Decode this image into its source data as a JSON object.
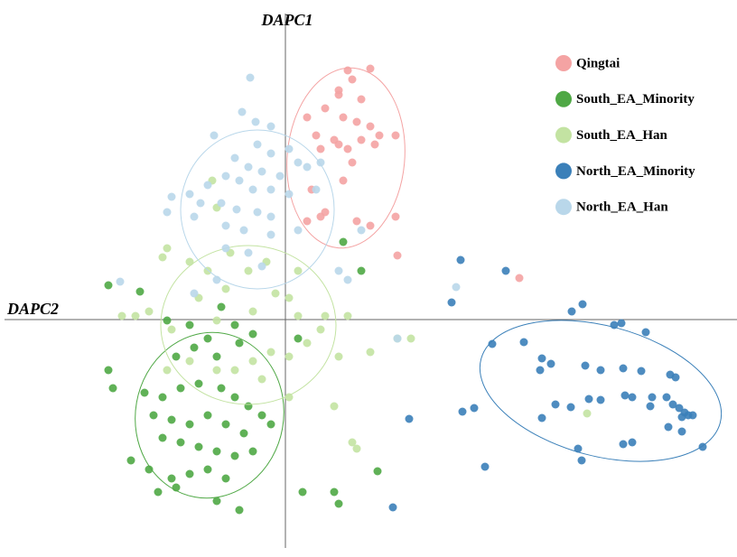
{
  "chart_data": {
    "type": "scatter",
    "x_label": "DAPC2",
    "y_label": "DAPC1",
    "xlim": [
      -311,
      500
    ],
    "ylim": [
      -253,
      339
    ],
    "legend": "top-right",
    "series": [
      {
        "name": "Qingtai",
        "color": "#f4a3a3",
        "x": [
          69,
          94,
          74,
          59,
          84,
          44,
          64,
          79,
          94,
          34,
          54,
          84,
          104,
          122,
          39,
          69,
          99,
          74,
          64,
          29,
          44,
          24,
          39,
          79,
          94,
          122,
          124,
          259,
          24,
          59,
          59
        ],
        "y": [
          276,
          278,
          266,
          254,
          244,
          234,
          224,
          219,
          214,
          204,
          199,
          199,
          204,
          204,
          189,
          189,
          194,
          174,
          154,
          144,
          119,
          109,
          114,
          109,
          104,
          114,
          71,
          46,
          224,
          249,
          194
        ],
        "ellipse": {
          "cx": 67,
          "cy": 179,
          "rx": 65,
          "ry": 100,
          "angle": -5
        }
      },
      {
        "name": "South_EA_Minority",
        "color": "#4fa845",
        "x": [
          -196,
          -161,
          -131,
          -106,
          -71,
          -56,
          -86,
          -101,
          -121,
          -76,
          -51,
          -36,
          -196,
          -191,
          -156,
          -136,
          -116,
          -96,
          -71,
          -56,
          -41,
          -26,
          -16,
          -146,
          -126,
          -106,
          -86,
          -66,
          -46,
          -136,
          -116,
          -96,
          -76,
          -56,
          -36,
          -171,
          -151,
          -126,
          -106,
          -86,
          -66,
          -141,
          -121,
          -76,
          -51,
          19,
          54,
          59,
          102,
          14,
          64,
          84
        ],
        "y": [
          38,
          31,
          -1,
          -6,
          14,
          -6,
          -21,
          -31,
          -41,
          -41,
          -26,
          -16,
          -56,
          -76,
          -81,
          -86,
          -76,
          -71,
          -76,
          -86,
          -96,
          -106,
          -116,
          -106,
          -111,
          -116,
          -106,
          -116,
          -126,
          -131,
          -136,
          -141,
          -146,
          -151,
          -146,
          -156,
          -166,
          -176,
          -171,
          -166,
          -176,
          -191,
          -186,
          -201,
          -211,
          -191,
          -191,
          -204,
          -168,
          -21,
          86,
          54
        ],
        "ellipse": {
          "cx": -84,
          "cy": -106,
          "rx": 82,
          "ry": 92,
          "angle": -10
        }
      },
      {
        "name": "South_EA_Han",
        "color": "#c3e3a2",
        "x": [
          -136,
          -131,
          -106,
          -86,
          -61,
          -41,
          -21,
          -11,
          4,
          -66,
          -96,
          -151,
          -166,
          -181,
          -126,
          -76,
          -36,
          14,
          44,
          69,
          39,
          24,
          4,
          -16,
          -36,
          -56,
          -76,
          -106,
          -131,
          -26,
          4,
          59,
          94,
          124,
          139,
          54,
          74,
          79,
          334,
          -81,
          -76,
          14
        ],
        "y": [
          69,
          79,
          64,
          54,
          74,
          54,
          64,
          29,
          24,
          34,
          24,
          9,
          4,
          4,
          -11,
          -1,
          9,
          4,
          4,
          4,
          -11,
          -26,
          -41,
          -36,
          -46,
          -56,
          -56,
          -46,
          -56,
          -66,
          -86,
          -41,
          -36,
          -21,
          -21,
          -96,
          -136,
          -143,
          -104,
          154,
          124,
          54
        ],
        "ellipse": {
          "cx": -41,
          "cy": -6,
          "rx": 97,
          "ry": 88,
          "angle": 0
        }
      },
      {
        "name": "North_EA_Minority",
        "color": "#3b80b9",
        "x": [
          194,
          244,
          184,
          329,
          317,
          364,
          372,
          399,
          229,
          264,
          284,
          294,
          332,
          349,
          374,
          394,
          426,
          432,
          282,
          299,
          316,
          336,
          349,
          376,
          384,
          406,
          404,
          422,
          429,
          436,
          442,
          446,
          451,
          439,
          284,
          424,
          439,
          462,
          324,
          328,
          374,
          384,
          209,
          196,
          137,
          221,
          119
        ],
        "y": [
          66,
          54,
          19,
          17,
          9,
          -6,
          -4,
          -14,
          -27,
          -25,
          -43,
          -49,
          -51,
          -56,
          -54,
          -57,
          -61,
          -64,
          -56,
          -94,
          -97,
          -88,
          -89,
          -84,
          -86,
          -86,
          -96,
          -86,
          -94,
          -98,
          -103,
          -106,
          -106,
          -108,
          -109,
          -119,
          -124,
          -141,
          -143,
          -156,
          -138,
          -136,
          -98,
          -102,
          -110,
          -163,
          -208
        ],
        "ellipse": {
          "cx": 349,
          "cy": -79,
          "rx": 137,
          "ry": 72,
          "angle": -15
        }
      },
      {
        "name": "North_EA_Han",
        "color": "#b9d7ea",
        "x": [
          -39,
          -48,
          -33,
          -16,
          -79,
          -31,
          -16,
          4,
          14,
          -56,
          -41,
          -26,
          -6,
          24,
          39,
          -66,
          -51,
          -36,
          -16,
          -86,
          -106,
          -126,
          -94,
          -71,
          -54,
          -31,
          -16,
          4,
          34,
          -131,
          -101,
          -66,
          -46,
          -16,
          14,
          -66,
          -41,
          -26,
          -76,
          69,
          189,
          124,
          -183,
          -101,
          59,
          84
        ],
        "y": [
          268,
          230,
          219,
          214,
          204,
          194,
          184,
          189,
          174,
          179,
          169,
          164,
          159,
          169,
          174,
          159,
          154,
          144,
          144,
          149,
          139,
          136,
          129,
          129,
          122,
          119,
          114,
          139,
          144,
          119,
          114,
          104,
          99,
          94,
          99,
          79,
          74,
          59,
          44,
          44,
          36,
          -21,
          42,
          29,
          54,
          99
        ],
        "ellipse": {
          "cx": -31,
          "cy": 122,
          "rx": 85,
          "ry": 88,
          "angle": 0
        }
      }
    ]
  }
}
